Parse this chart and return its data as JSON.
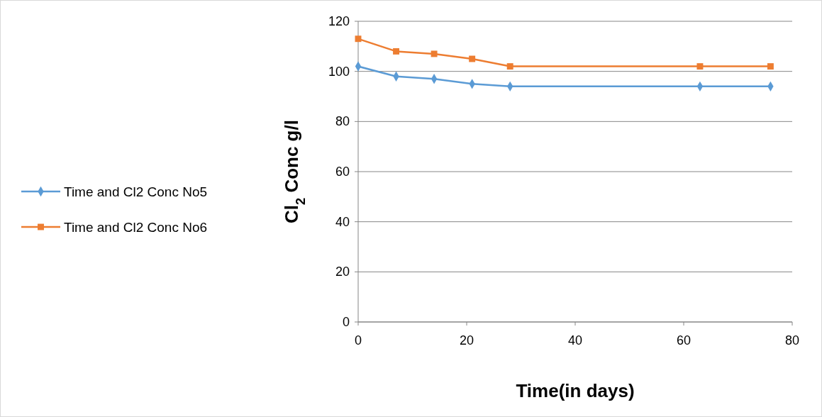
{
  "chart_data": {
    "type": "line",
    "xlabel": "Time(in days)",
    "ylabel": "Cl$_{2}$ Conc g/l",
    "xlim": [
      0,
      80
    ],
    "xticks": [
      0,
      20,
      40,
      60,
      80
    ],
    "ylim": [
      0,
      120
    ],
    "yticks": [
      0,
      20,
      40,
      60,
      80,
      100,
      120
    ],
    "grid": "y",
    "legend": "left",
    "line_style": "solid",
    "series": [
      {
        "name": "Time and Cl2 Conc No5",
        "color": "#5b9bd5",
        "marker": "diamond",
        "x": [
          0,
          7,
          14,
          21,
          28,
          63,
          76
        ],
        "values": [
          102,
          98,
          97,
          95,
          94,
          94,
          94
        ]
      },
      {
        "name": "Time and Cl2 Conc No6",
        "color": "#ed7d31",
        "marker": "square",
        "x": [
          0,
          7,
          14,
          21,
          28,
          63,
          76
        ],
        "values": [
          113,
          108,
          107,
          105,
          102,
          102,
          102
        ]
      }
    ]
  }
}
